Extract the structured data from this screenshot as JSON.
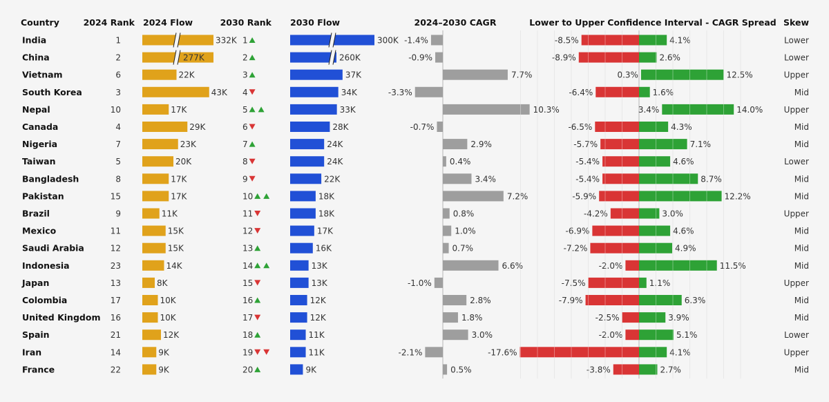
{
  "colors": {
    "flow2024": "#e0a21b",
    "flow2030": "#2150d6",
    "cagr": "#9e9e9e",
    "lower": "#d93535",
    "upper": "#2ea236",
    "up": "#2ea236",
    "down": "#d93535",
    "grid": "#dcdcdc",
    "text": "#333333",
    "header": "#111111",
    "background": "#f5f5f5"
  },
  "chart_data": {
    "type": "table",
    "headers": {
      "country": "Country",
      "rank2024": "2024 Rank",
      "flow2024": "2024 Flow",
      "rank2030": "2030 Rank",
      "flow2030": "2030 Flow",
      "cagr": "2024–2030 CAGR",
      "ci": "Lower to Upper Confidence Interval - CAGR Spread",
      "skew": "Skew"
    },
    "rows": [
      {
        "country": "India",
        "rank2024": 1,
        "flow2024": 332,
        "flow2024_label": "332K",
        "rank2030": 1,
        "rank_change": [
          "up"
        ],
        "flow2030": 300,
        "flow2030_label": "300K",
        "cagr": -1.4,
        "cagr_label": "-1.4%",
        "ci_low": -8.5,
        "ci_low_label": "-8.5%",
        "ci_high": 4.1,
        "ci_high_label": "4.1%",
        "skew": "Lower"
      },
      {
        "country": "China",
        "rank2024": 2,
        "flow2024": 277,
        "flow2024_label": "277K",
        "rank2030": 2,
        "rank_change": [
          "up"
        ],
        "flow2030": 260,
        "flow2030_label": "260K",
        "cagr": -0.9,
        "cagr_label": "-0.9%",
        "ci_low": -8.9,
        "ci_low_label": "-8.9%",
        "ci_high": 2.6,
        "ci_high_label": "2.6%",
        "skew": "Lower"
      },
      {
        "country": "Vietnam",
        "rank2024": 6,
        "flow2024": 22,
        "flow2024_label": "22K",
        "rank2030": 3,
        "rank_change": [
          "up"
        ],
        "flow2030": 37,
        "flow2030_label": "37K",
        "cagr": 7.7,
        "cagr_label": "7.7%",
        "ci_low": 0.3,
        "ci_low_label": "0.3%",
        "ci_high": 12.5,
        "ci_high_label": "12.5%",
        "skew": "Upper"
      },
      {
        "country": "South Korea",
        "rank2024": 3,
        "flow2024": 43,
        "flow2024_label": "43K",
        "rank2030": 4,
        "rank_change": [
          "down"
        ],
        "flow2030": 34,
        "flow2030_label": "34K",
        "cagr": -3.3,
        "cagr_label": "-3.3%",
        "ci_low": -6.4,
        "ci_low_label": "-6.4%",
        "ci_high": 1.6,
        "ci_high_label": "1.6%",
        "skew": "Mid"
      },
      {
        "country": "Nepal",
        "rank2024": 10,
        "flow2024": 17,
        "flow2024_label": "17K",
        "rank2030": 5,
        "rank_change": [
          "up",
          "up"
        ],
        "flow2030": 33,
        "flow2030_label": "33K",
        "cagr": 10.3,
        "cagr_label": "10.3%",
        "ci_low": 3.4,
        "ci_low_label": "3.4%",
        "ci_high": 14.0,
        "ci_high_label": "14.0%",
        "skew": "Upper"
      },
      {
        "country": "Canada",
        "rank2024": 4,
        "flow2024": 29,
        "flow2024_label": "29K",
        "rank2030": 6,
        "rank_change": [
          "down"
        ],
        "flow2030": 28,
        "flow2030_label": "28K",
        "cagr": -0.7,
        "cagr_label": "-0.7%",
        "ci_low": -6.5,
        "ci_low_label": "-6.5%",
        "ci_high": 4.3,
        "ci_high_label": "4.3%",
        "skew": "Mid"
      },
      {
        "country": "Nigeria",
        "rank2024": 7,
        "flow2024": 23,
        "flow2024_label": "23K",
        "rank2030": 7,
        "rank_change": [
          "up"
        ],
        "flow2030": 24,
        "flow2030_label": "24K",
        "cagr": 2.9,
        "cagr_label": "2.9%",
        "ci_low": -5.7,
        "ci_low_label": "-5.7%",
        "ci_high": 7.1,
        "ci_high_label": "7.1%",
        "skew": "Mid"
      },
      {
        "country": "Taiwan",
        "rank2024": 5,
        "flow2024": 20,
        "flow2024_label": "20K",
        "rank2030": 8,
        "rank_change": [
          "down"
        ],
        "flow2030": 24,
        "flow2030_label": "24K",
        "cagr": 0.4,
        "cagr_label": "0.4%",
        "ci_low": -5.4,
        "ci_low_label": "-5.4%",
        "ci_high": 4.6,
        "ci_high_label": "4.6%",
        "skew": "Lower"
      },
      {
        "country": "Bangladesh",
        "rank2024": 8,
        "flow2024": 17,
        "flow2024_label": "17K",
        "rank2030": 9,
        "rank_change": [
          "down"
        ],
        "flow2030": 22,
        "flow2030_label": "22K",
        "cagr": 3.4,
        "cagr_label": "3.4%",
        "ci_low": -5.4,
        "ci_low_label": "-5.4%",
        "ci_high": 8.7,
        "ci_high_label": "8.7%",
        "skew": "Mid"
      },
      {
        "country": "Pakistan",
        "rank2024": 15,
        "flow2024": 17,
        "flow2024_label": "17K",
        "rank2030": 10,
        "rank_change": [
          "up",
          "up"
        ],
        "flow2030": 18,
        "flow2030_label": "18K",
        "cagr": 7.2,
        "cagr_label": "7.2%",
        "ci_low": -5.9,
        "ci_low_label": "-5.9%",
        "ci_high": 12.2,
        "ci_high_label": "12.2%",
        "skew": "Mid"
      },
      {
        "country": "Brazil",
        "rank2024": 9,
        "flow2024": 11,
        "flow2024_label": "11K",
        "rank2030": 11,
        "rank_change": [
          "down"
        ],
        "flow2030": 18,
        "flow2030_label": "18K",
        "cagr": 0.8,
        "cagr_label": "0.8%",
        "ci_low": -4.2,
        "ci_low_label": "-4.2%",
        "ci_high": 3.0,
        "ci_high_label": "3.0%",
        "skew": "Upper"
      },
      {
        "country": "Mexico",
        "rank2024": 11,
        "flow2024": 15,
        "flow2024_label": "15K",
        "rank2030": 12,
        "rank_change": [
          "down"
        ],
        "flow2030": 17,
        "flow2030_label": "17K",
        "cagr": 1.0,
        "cagr_label": "1.0%",
        "ci_low": -6.9,
        "ci_low_label": "-6.9%",
        "ci_high": 4.6,
        "ci_high_label": "4.6%",
        "skew": "Mid"
      },
      {
        "country": "Saudi Arabia",
        "rank2024": 12,
        "flow2024": 15,
        "flow2024_label": "15K",
        "rank2030": 13,
        "rank_change": [
          "up"
        ],
        "flow2030": 16,
        "flow2030_label": "16K",
        "cagr": 0.7,
        "cagr_label": "0.7%",
        "ci_low": -7.2,
        "ci_low_label": "-7.2%",
        "ci_high": 4.9,
        "ci_high_label": "4.9%",
        "skew": "Mid"
      },
      {
        "country": "Indonesia",
        "rank2024": 23,
        "flow2024": 14,
        "flow2024_label": "14K",
        "rank2030": 14,
        "rank_change": [
          "up",
          "up"
        ],
        "flow2030": 13,
        "flow2030_label": "13K",
        "cagr": 6.6,
        "cagr_label": "6.6%",
        "ci_low": -2.0,
        "ci_low_label": "-2.0%",
        "ci_high": 11.5,
        "ci_high_label": "11.5%",
        "skew": "Mid"
      },
      {
        "country": "Japan",
        "rank2024": 13,
        "flow2024": 8,
        "flow2024_label": "8K",
        "rank2030": 15,
        "rank_change": [
          "down"
        ],
        "flow2030": 13,
        "flow2030_label": "13K",
        "cagr": -1.0,
        "cagr_label": "-1.0%",
        "ci_low": -7.5,
        "ci_low_label": "-7.5%",
        "ci_high": 1.1,
        "ci_high_label": "1.1%",
        "skew": "Upper"
      },
      {
        "country": "Colombia",
        "rank2024": 17,
        "flow2024": 10,
        "flow2024_label": "10K",
        "rank2030": 16,
        "rank_change": [
          "up"
        ],
        "flow2030": 12,
        "flow2030_label": "12K",
        "cagr": 2.8,
        "cagr_label": "2.8%",
        "ci_low": -7.9,
        "ci_low_label": "-7.9%",
        "ci_high": 6.3,
        "ci_high_label": "6.3%",
        "skew": "Mid"
      },
      {
        "country": "United Kingdom",
        "rank2024": 16,
        "flow2024": 10,
        "flow2024_label": "10K",
        "rank2030": 17,
        "rank_change": [
          "down"
        ],
        "flow2030": 12,
        "flow2030_label": "12K",
        "cagr": 1.8,
        "cagr_label": "1.8%",
        "ci_low": -2.5,
        "ci_low_label": "-2.5%",
        "ci_high": 3.9,
        "ci_high_label": "3.9%",
        "skew": "Mid"
      },
      {
        "country": "Spain",
        "rank2024": 21,
        "flow2024": 12,
        "flow2024_label": "12K",
        "rank2030": 18,
        "rank_change": [
          "up"
        ],
        "flow2030": 11,
        "flow2030_label": "11K",
        "cagr": 3.0,
        "cagr_label": "3.0%",
        "ci_low": -2.0,
        "ci_low_label": "-2.0%",
        "ci_high": 5.1,
        "ci_high_label": "5.1%",
        "skew": "Lower"
      },
      {
        "country": "Iran",
        "rank2024": 14,
        "flow2024": 9,
        "flow2024_label": "9K",
        "rank2030": 19,
        "rank_change": [
          "down",
          "down"
        ],
        "flow2030": 11,
        "flow2030_label": "11K",
        "cagr": -2.1,
        "cagr_label": "-2.1%",
        "ci_low": -17.6,
        "ci_low_label": "-17.6%",
        "ci_high": 4.1,
        "ci_high_label": "4.1%",
        "skew": "Upper"
      },
      {
        "country": "France",
        "rank2024": 22,
        "flow2024": 9,
        "flow2024_label": "9K",
        "rank2030": 20,
        "rank_change": [
          "up"
        ],
        "flow2030": 9,
        "flow2030_label": "9K",
        "cagr": 0.5,
        "cagr_label": "0.5%",
        "ci_low": -3.8,
        "ci_low_label": "-3.8%",
        "ci_high": 2.7,
        "ci_high_label": "2.7%",
        "skew": "Mid"
      }
    ]
  }
}
